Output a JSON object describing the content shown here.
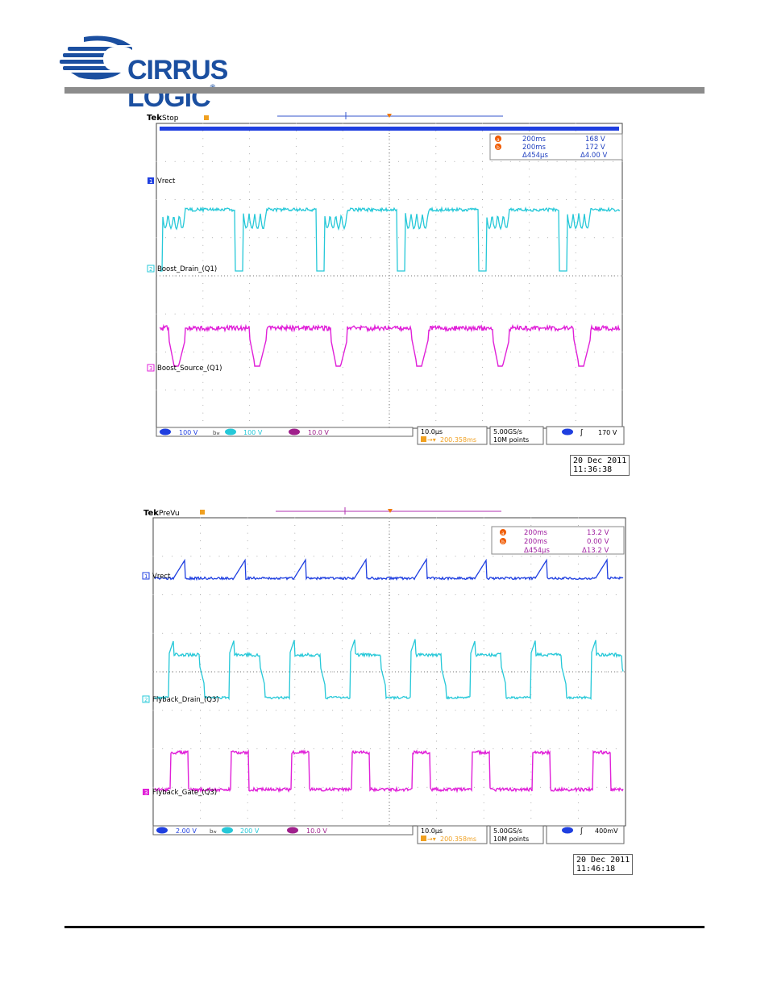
{
  "header": {
    "logo_text": "CIRRUS LOGIC",
    "logo_reg": "®",
    "brand_color": "#1b4fa0"
  },
  "scopes": [
    {
      "brand": "Tek",
      "mode": "Stop",
      "cursor_a_time": "200ms",
      "cursor_a_value": "168 V",
      "cursor_b_time": "200ms",
      "cursor_b_value": "172 V",
      "delta_time": "Δ454µs",
      "delta_value": "Δ4.00 V",
      "readout_color": "#1f3fbf",
      "traces": [
        {
          "label": "Vrect",
          "color": "#1f3fe0",
          "marker": "1"
        },
        {
          "label": "Boost_Drain_(Q1)",
          "color": "#25c8d8",
          "marker": "2"
        },
        {
          "label": "Boost_Source_(Q1)",
          "color": "#e020d8",
          "marker": "3"
        }
      ],
      "ch1_scale": "100 V",
      "ch2_scale": "100 V",
      "ch3_scale": "10.0 V",
      "timebase": "10.0µs",
      "trigger_pos": "200.358ms",
      "sample_rate": "5.00GS/s",
      "record_length": "10M points",
      "trigger_level": "170 V",
      "date": "20 Dec 2011",
      "time": "11:36:38"
    },
    {
      "brand": "Tek",
      "mode": "PreVu",
      "cursor_a_time": "200ms",
      "cursor_a_value": "13.2 V",
      "cursor_b_time": "200ms",
      "cursor_b_value": "0.00 V",
      "delta_time": "Δ454µs",
      "delta_value": "Δ13.2 V",
      "readout_color": "#a020a0",
      "traces": [
        {
          "label": "Vrect",
          "color": "#1f3fe0",
          "marker": "1"
        },
        {
          "label": "Flyback_Drain_(Q3)",
          "color": "#25c8d8",
          "marker": "2"
        },
        {
          "label": "Flyback_Gate_(Q3)",
          "color": "#e020d8",
          "marker": "3"
        }
      ],
      "ch1_scale": "2.00 V",
      "ch2_scale": "200 V",
      "ch3_scale": "10.0 V",
      "timebase": "10.0µs",
      "trigger_pos": "200.358ms",
      "sample_rate": "5.00GS/s",
      "record_length": "10M points",
      "trigger_level": "400mV",
      "date": "20 Dec 2011",
      "time": "11:46:18"
    }
  ]
}
